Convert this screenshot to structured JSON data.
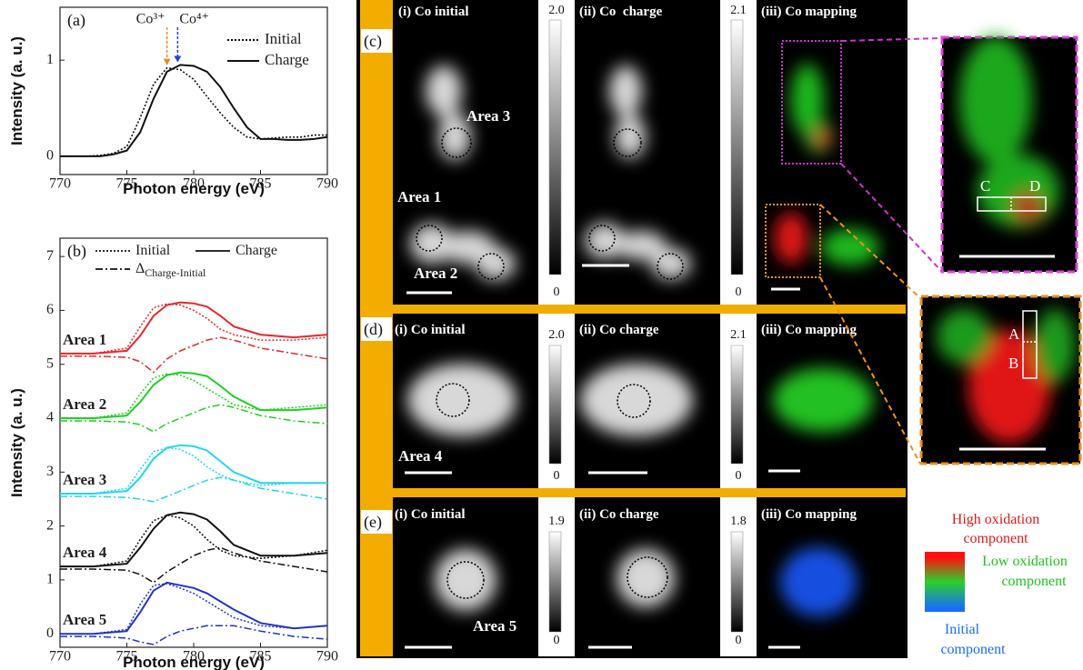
{
  "chart_data": [
    {
      "type": "line",
      "panel_label": "(a)",
      "xlabel": "Photon energy (eV)",
      "ylabel": "Intensity (a. u.)",
      "x": [
        770,
        771,
        772,
        773,
        774,
        775,
        776,
        777,
        778,
        779,
        780,
        781,
        782,
        783,
        784,
        785,
        786,
        787,
        788,
        789,
        790
      ],
      "series": [
        {
          "name": "Initial",
          "color": "#111111",
          "dash": "dotted",
          "values": [
            0,
            0,
            0,
            0.01,
            0.03,
            0.1,
            0.4,
            0.75,
            0.92,
            0.9,
            0.8,
            0.62,
            0.45,
            0.3,
            0.2,
            0.18,
            0.19,
            0.2,
            0.2,
            0.22,
            0.22
          ]
        },
        {
          "name": "Charge",
          "color": "#111111",
          "dash": "solid",
          "values": [
            0,
            0,
            0,
            0,
            0.02,
            0.06,
            0.25,
            0.6,
            0.88,
            0.95,
            0.94,
            0.88,
            0.72,
            0.5,
            0.3,
            0.18,
            0.18,
            0.17,
            0.17,
            0.18,
            0.2
          ]
        }
      ],
      "annotations": [
        {
          "text": "Co³⁺",
          "x": 778,
          "y": 0.92,
          "color": "#f08a1c"
        },
        {
          "text": "Co⁴⁺",
          "x": 778.8,
          "y": 0.95,
          "color": "#1f3fe0"
        }
      ],
      "xlim": [
        770,
        790
      ],
      "xticks": [
        770,
        775,
        780,
        785,
        790
      ],
      "ylim": [
        -0.19,
        1.55
      ],
      "yticks": [
        0,
        1
      ]
    },
    {
      "type": "multi-line",
      "panel_label": "(b)",
      "xlabel": "Photon energy (eV)",
      "ylabel": "Intensity (a. u.)",
      "legend": [
        {
          "name": "Initial",
          "dash": "dotted"
        },
        {
          "name": "Charge",
          "dash": "solid"
        },
        {
          "name": "Δ",
          "subscript": "Charge-Initial",
          "dash": "dashdot"
        }
      ],
      "x": [
        770,
        772.5,
        775,
        776,
        777,
        778,
        779,
        780,
        781,
        782,
        783,
        785,
        787.5,
        790
      ],
      "series": [
        {
          "name": "Area 1",
          "color": "#e8262a",
          "initial": [
            5.2,
            5.2,
            5.3,
            5.7,
            6.05,
            6.12,
            6.1,
            6.0,
            5.85,
            5.65,
            5.55,
            5.45,
            5.45,
            5.5
          ],
          "charge": [
            5.2,
            5.2,
            5.25,
            5.53,
            5.9,
            6.1,
            6.15,
            6.13,
            6.07,
            5.9,
            5.7,
            5.55,
            5.5,
            5.55
          ],
          "delta": [
            5.15,
            5.15,
            5.13,
            5.05,
            4.85,
            5.1,
            5.25,
            5.35,
            5.45,
            5.5,
            5.45,
            5.3,
            5.2,
            5.1
          ]
        },
        {
          "name": "Area 2",
          "color": "#1fcf1f",
          "initial": [
            4.0,
            4.0,
            4.1,
            4.45,
            4.75,
            4.82,
            4.8,
            4.7,
            4.55,
            4.4,
            4.25,
            4.15,
            4.2,
            4.25
          ],
          "charge": [
            4.0,
            4.0,
            4.05,
            4.3,
            4.62,
            4.8,
            4.85,
            4.83,
            4.78,
            4.6,
            4.4,
            4.15,
            4.15,
            4.2
          ],
          "delta": [
            3.95,
            3.95,
            3.93,
            3.88,
            3.75,
            3.9,
            4.0,
            4.1,
            4.2,
            4.25,
            4.2,
            4.05,
            3.95,
            3.9
          ]
        },
        {
          "name": "Area 3",
          "color": "#22d6ea",
          "initial": [
            2.6,
            2.6,
            2.7,
            3.05,
            3.38,
            3.45,
            3.42,
            3.3,
            3.1,
            2.95,
            2.85,
            2.75,
            2.8,
            2.8
          ],
          "charge": [
            2.6,
            2.6,
            2.65,
            2.9,
            3.25,
            3.45,
            3.5,
            3.48,
            3.4,
            3.2,
            3.0,
            2.8,
            2.8,
            2.8
          ],
          "delta": [
            2.55,
            2.55,
            2.53,
            2.5,
            2.45,
            2.55,
            2.65,
            2.75,
            2.85,
            2.9,
            2.85,
            2.7,
            2.6,
            2.5
          ]
        },
        {
          "name": "Area 4",
          "color": "#111111",
          "initial": [
            1.25,
            1.25,
            1.35,
            1.75,
            2.1,
            2.2,
            2.15,
            2.0,
            1.75,
            1.55,
            1.45,
            1.4,
            1.45,
            1.55
          ],
          "charge": [
            1.25,
            1.25,
            1.3,
            1.6,
            1.95,
            2.2,
            2.25,
            2.22,
            2.12,
            1.9,
            1.65,
            1.45,
            1.45,
            1.5
          ],
          "delta": [
            1.2,
            1.2,
            1.18,
            1.1,
            0.95,
            1.15,
            1.3,
            1.45,
            1.55,
            1.6,
            1.5,
            1.35,
            1.25,
            1.15
          ]
        },
        {
          "name": "Area 5",
          "color": "#2233cc",
          "initial": [
            0,
            0,
            0.08,
            0.55,
            0.9,
            0.93,
            0.85,
            0.75,
            0.6,
            0.45,
            0.3,
            0.15,
            0.1,
            0.15
          ],
          "charge": [
            0,
            0,
            0.05,
            0.4,
            0.8,
            0.95,
            0.9,
            0.85,
            0.75,
            0.6,
            0.45,
            0.2,
            0.1,
            0.15
          ],
          "delta": [
            -0.05,
            -0.05,
            -0.08,
            -0.15,
            -0.2,
            -0.05,
            0.05,
            0.1,
            0.15,
            0.15,
            0.15,
            0.05,
            -0.05,
            -0.1
          ]
        }
      ],
      "xlim": [
        770,
        790
      ],
      "xticks": [
        770,
        775,
        780,
        785,
        790
      ],
      "ylim": [
        -0.25,
        7.34
      ],
      "yticks": [
        0,
        1,
        2,
        3,
        4,
        5,
        6,
        7
      ]
    }
  ],
  "panels": [
    {
      "label": "(c)",
      "titles": [
        "(i) Co initial",
        "(ii) Co  charge",
        "(iii) Co mapping"
      ],
      "colorbars": [
        {
          "max": "2.0",
          "min": "0"
        },
        {
          "max": "2.1",
          "min": "0"
        }
      ],
      "areas": [
        "Area 3",
        "Area 1",
        "Area 2"
      ]
    },
    {
      "label": "(d)",
      "titles": [
        "(i) Co initial",
        "(ii) Co charge",
        "(iii) Co mapping"
      ],
      "colorbars": [
        {
          "max": "2.0",
          "min": "0"
        },
        {
          "max": "2.1",
          "min": "0"
        }
      ],
      "areas": [
        "Area 4"
      ]
    },
    {
      "label": "(e)",
      "titles": [
        "(i) Co initial",
        "(ii) Co charge",
        "(iii) Co mapping"
      ],
      "colorbars": [
        {
          "max": "1.9",
          "min": "0"
        },
        {
          "max": "1.8",
          "min": "0"
        }
      ],
      "areas": [
        "Area 5"
      ]
    }
  ],
  "insets": {
    "top": [
      "C",
      "D"
    ],
    "bottom": [
      "A",
      "B"
    ]
  },
  "color_legend": {
    "high": [
      "High oxidation",
      "component"
    ],
    "low": [
      "Low oxidation",
      "component"
    ],
    "initial": [
      "Initial",
      "component"
    ]
  }
}
